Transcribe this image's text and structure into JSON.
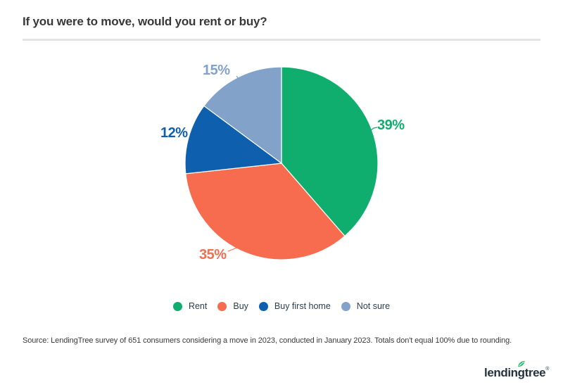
{
  "header": {
    "title": "If you were to move, would you rent or buy?"
  },
  "chart_data": {
    "type": "pie",
    "title": "If you were to move, would you rent or buy?",
    "categories": [
      "Rent",
      "Buy",
      "Buy first home",
      "Not sure"
    ],
    "values": [
      39,
      35,
      12,
      15
    ],
    "value_labels": [
      "39%",
      "35%",
      "12%",
      "15%"
    ],
    "colors": [
      "#10AE6E",
      "#F76C4E",
      "#0E5FAD",
      "#82A2C9"
    ],
    "start_angle": "12 o'clock",
    "direction": "clockwise",
    "legend_position": "bottom",
    "footnote": "Totals don't equal 100% due to rounding"
  },
  "footer": {
    "source_text": "Source: LendingTree survey of 651 consumers considering a move in 2023, conducted in January 2023. Totals don't equal 100% due to rounding.",
    "logo": {
      "part1": "lendin",
      "part2": "g",
      "part3": "tree",
      "mark": "®",
      "text_color": "#22333F",
      "leaf_color": "#2EBD70"
    }
  }
}
